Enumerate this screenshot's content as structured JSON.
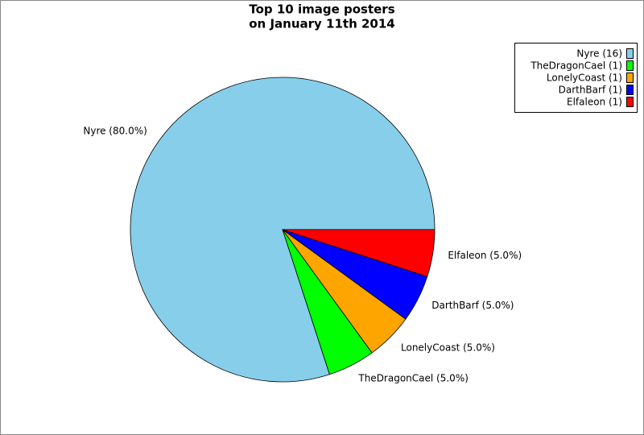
{
  "chart_data": {
    "type": "pie",
    "title": [
      "Top 10 image posters",
      "on January 11th 2014"
    ],
    "values": [
      80,
      5,
      5,
      5,
      5
    ],
    "value_labels": [
      "Nyre (80.0%)",
      "TheDragonCael (5.0%)",
      "LonelyCoast (5.0%)",
      "DarthBarf (5.0%)",
      "Elfaleon (5.0%)"
    ],
    "colors": [
      "#87ceeb",
      "#00ff00",
      "#ffa500",
      "#0000ff",
      "#ff0000"
    ],
    "legend": {
      "labels": [
        "Nyre (16)",
        "TheDragonCael (1)",
        "LonelyCoast (1)",
        "DarthBarf (1)",
        "Elfaleon (1)"
      ],
      "location": "upper right"
    }
  }
}
